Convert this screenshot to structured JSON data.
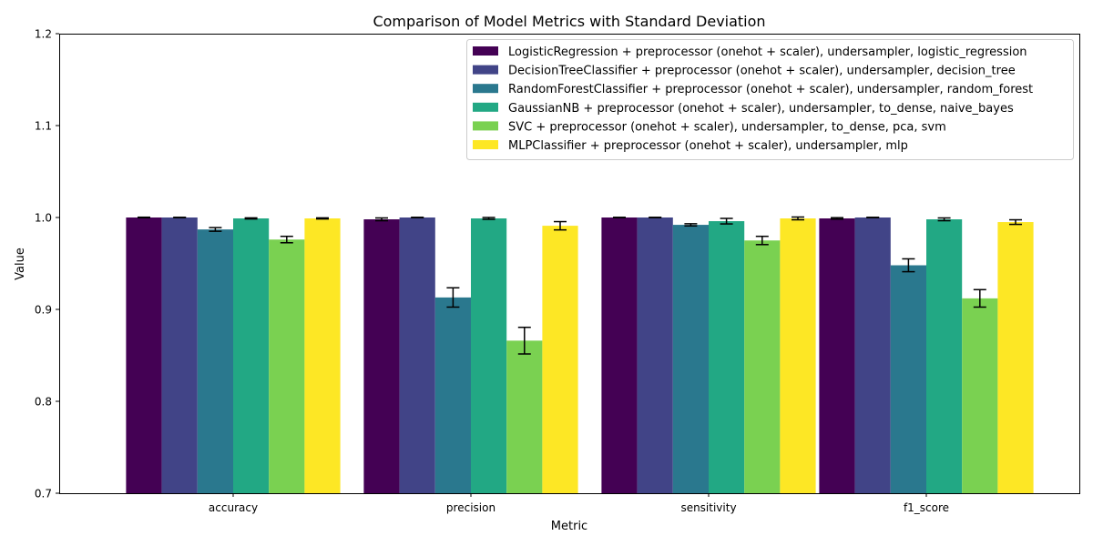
{
  "chart_data": {
    "type": "bar",
    "title": "Comparison of Model Metrics with Standard Deviation",
    "xlabel": "Metric",
    "ylabel": "Value",
    "ylim": [
      0.7,
      1.2
    ],
    "yticks": [
      "0.7",
      "0.8",
      "0.9",
      "1.0",
      "1.1",
      "1.2"
    ],
    "categories": [
      "accuracy",
      "precision",
      "sensitivity",
      "f1_score"
    ],
    "legend_position": "top-right",
    "grid": false,
    "series": [
      {
        "name": "LogisticRegression + preprocessor (onehot + scaler), undersampler, logistic_regression",
        "color": "#440154",
        "values": [
          1.0,
          0.998,
          1.0,
          0.999
        ],
        "std": [
          0.0003,
          0.0015,
          0.0002,
          0.0008
        ]
      },
      {
        "name": "DecisionTreeClassifier + preprocessor (onehot + scaler), undersampler, decision_tree",
        "color": "#414487",
        "values": [
          1.0,
          1.0,
          1.0,
          1.0
        ],
        "std": [
          0.0002,
          0.0002,
          0.0002,
          0.0002
        ]
      },
      {
        "name": "RandomForestClassifier + preprocessor (onehot + scaler), undersampler, random_forest",
        "color": "#2a788e",
        "values": [
          0.987,
          0.913,
          0.992,
          0.948
        ],
        "std": [
          0.002,
          0.0105,
          0.0012,
          0.007
        ]
      },
      {
        "name": "GaussianNB + preprocessor (onehot + scaler), undersampler, to_dense, naive_bayes",
        "color": "#22a884",
        "values": [
          0.999,
          0.999,
          0.996,
          0.998
        ],
        "std": [
          0.0006,
          0.001,
          0.003,
          0.0015
        ]
      },
      {
        "name": "SVC + preprocessor (onehot + scaler), undersampler, to_dense, pca, svm",
        "color": "#7ad151",
        "values": [
          0.976,
          0.866,
          0.975,
          0.912
        ],
        "std": [
          0.0035,
          0.0145,
          0.0045,
          0.0095
        ]
      },
      {
        "name": "MLPClassifier + preprocessor (onehot + scaler), undersampler, mlp",
        "color": "#fde725",
        "values": [
          0.999,
          0.991,
          0.999,
          0.995
        ],
        "std": [
          0.0006,
          0.0045,
          0.0015,
          0.0025
        ]
      }
    ]
  }
}
